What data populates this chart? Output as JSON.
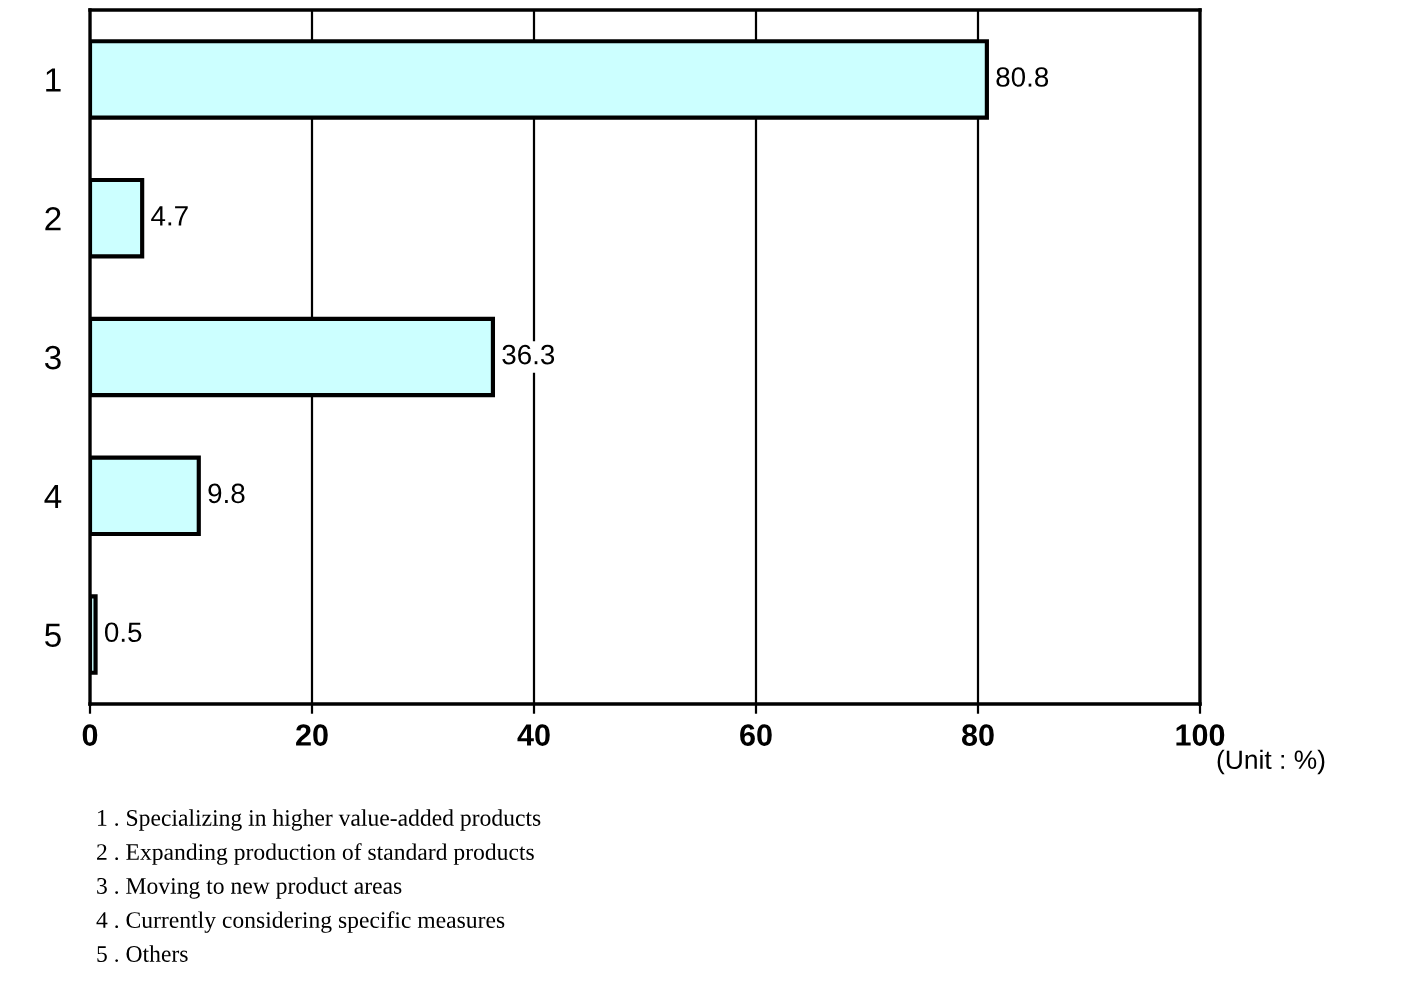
{
  "chart_data": {
    "type": "bar",
    "orientation": "horizontal",
    "categories": [
      "1",
      "2",
      "3",
      "4",
      "5"
    ],
    "values": [
      80.8,
      4.7,
      36.3,
      9.8,
      0.5
    ],
    "color": "#ccffff",
    "xlim": [
      0,
      100
    ],
    "xticks": [
      0,
      20,
      40,
      60,
      80,
      100
    ],
    "grid": "x",
    "data_labels": true,
    "annotations": [
      "(Unit : %)",
      "1 . Specializing in higher value-added products",
      "2 . Expanding production of standard products",
      "3 . Moving to new product areas",
      "4 . Currently considering specific measures",
      "5 . Others"
    ]
  }
}
